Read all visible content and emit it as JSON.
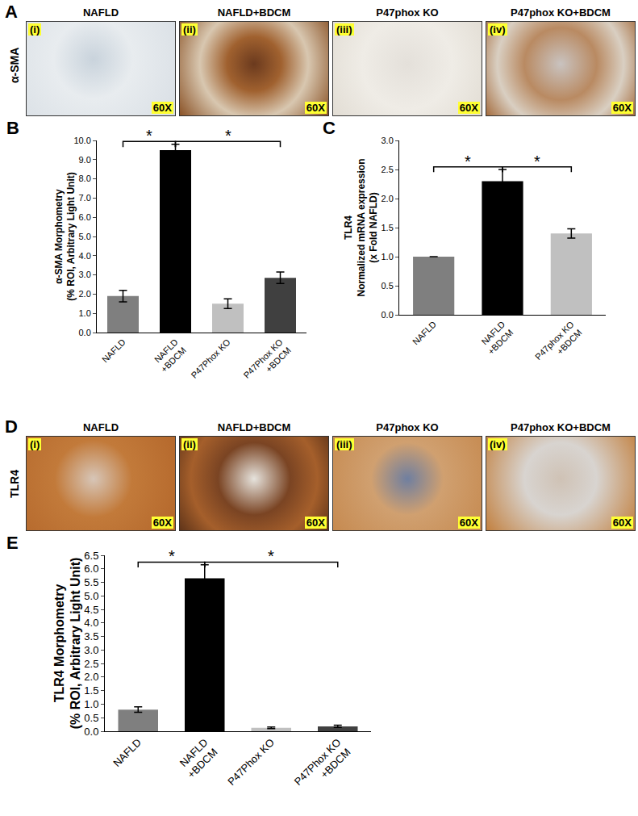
{
  "image_panels": [
    {
      "panel": "A",
      "row_label": "α-SMA",
      "images": [
        {
          "title": "NAFLD",
          "index": "(i)",
          "magnification": "60X"
        },
        {
          "title": "NAFLD+BDCM",
          "index": "(ii)",
          "magnification": "60X"
        },
        {
          "title": "P47phox  KO",
          "index": "(iii)",
          "magnification": "60X"
        },
        {
          "title": "P47phox  KO+BDCM",
          "index": "(iv)",
          "magnification": "60X"
        }
      ]
    },
    {
      "panel": "D",
      "row_label": "TLR4",
      "images": [
        {
          "title": "NAFLD",
          "index": "(i)",
          "magnification": "60X"
        },
        {
          "title": "NAFLD+BDCM",
          "index": "(ii)",
          "magnification": "60X"
        },
        {
          "title": "P47phox  KO",
          "index": "(iii)",
          "magnification": "60X"
        },
        {
          "title": "P47phox  KO+BDCM",
          "index": "(iv)",
          "magnification": "60X"
        }
      ]
    }
  ],
  "chart_data": [
    {
      "panel": "B",
      "type": "bar",
      "y_label": [
        "α-SMA Morphometry",
        "(% ROI, Arbitrary Light Unit)"
      ],
      "categories": [
        "NAFLD",
        "NAFLD\n+BDCM",
        "P47Phox KO",
        "P47Phox KO\n+BDCM"
      ],
      "values": [
        1.9,
        9.5,
        1.5,
        2.85
      ],
      "errors": [
        0.3,
        0.3,
        0.25,
        0.3
      ],
      "colors": [
        "#7f7f7f",
        "#000000",
        "#c0c0c0",
        "#404040"
      ],
      "ylim": [
        0,
        10
      ],
      "yticks": [
        {
          "value": 0,
          "label": "0.0"
        },
        {
          "value": 1,
          "label": "1.0"
        },
        {
          "value": 2,
          "label": "2.0"
        },
        {
          "value": 3,
          "label": "3.0"
        },
        {
          "value": 4,
          "label": "4.0"
        },
        {
          "value": 5,
          "label": "5.0"
        },
        {
          "value": 6,
          "label": "6.0"
        },
        {
          "value": 7,
          "label": "7.0"
        },
        {
          "value": 8,
          "label": "8.0"
        },
        {
          "value": 9,
          "label": "9.0"
        },
        {
          "value": 10,
          "label": "10.0"
        }
      ],
      "grid": false,
      "significance": [
        {
          "from": 0,
          "to": 1,
          "label": "*"
        },
        {
          "from": 1,
          "to": 3,
          "label": "*"
        }
      ]
    },
    {
      "panel": "C",
      "type": "bar",
      "y_label": [
        "TLR4",
        "Normalized mRNA expression",
        "(x Fold NAFLD)"
      ],
      "categories": [
        "NAFLD",
        "NAFLD\n+BDCM",
        "P47phox KO\n+BDCM"
      ],
      "values": [
        1.0,
        2.3,
        1.4
      ],
      "errors": [
        0,
        0.2,
        0.08
      ],
      "colors": [
        "#7f7f7f",
        "#000000",
        "#c0c0c0"
      ],
      "ylim": [
        0,
        3
      ],
      "yticks": [
        {
          "value": 0,
          "label": "0.0"
        },
        {
          "value": 0.5,
          "label": "0.5"
        },
        {
          "value": 1,
          "label": "1.0"
        },
        {
          "value": 1.5,
          "label": "1.5"
        },
        {
          "value": 2,
          "label": "2.0"
        },
        {
          "value": 2.5,
          "label": "2.5"
        },
        {
          "value": 3,
          "label": "3.0"
        }
      ],
      "grid": false,
      "significance": [
        {
          "from": 0,
          "to": 1,
          "label": "*"
        },
        {
          "from": 1,
          "to": 2,
          "label": "*"
        }
      ]
    },
    {
      "panel": "E",
      "type": "bar",
      "y_label": [
        "TLR4 Morphometry",
        "(% ROI, Arbitrary Light Unit)"
      ],
      "categories": [
        "NAFLD",
        "NAFLD\n+BDCM",
        "P47Phox KO",
        "P47Phox KO\n+BDCM"
      ],
      "values": [
        0.8,
        5.65,
        0.13,
        0.18
      ],
      "errors": [
        0.1,
        0.5,
        0.03,
        0.04
      ],
      "colors": [
        "#7f7f7f",
        "#000000",
        "#c0c0c0",
        "#404040"
      ],
      "ylim": [
        0,
        6.5
      ],
      "yticks": [
        {
          "value": 0,
          "label": "0.0"
        },
        {
          "value": 0.5,
          "label": "0.5"
        },
        {
          "value": 1,
          "label": "1.0"
        },
        {
          "value": 1.5,
          "label": "1.5"
        },
        {
          "value": 2,
          "label": "2.0"
        },
        {
          "value": 2.5,
          "label": "2.5"
        },
        {
          "value": 3,
          "label": "3.0"
        },
        {
          "value": 3.5,
          "label": "3.5"
        },
        {
          "value": 4,
          "label": "4.0"
        },
        {
          "value": 4.5,
          "label": "4.5"
        },
        {
          "value": 5,
          "label": "5.0"
        },
        {
          "value": 5.5,
          "label": "5.5"
        },
        {
          "value": 6,
          "label": "6.0"
        },
        {
          "value": 6.5,
          "label": "6.5"
        }
      ],
      "grid": false,
      "significance": [
        {
          "from": 0,
          "to": 1,
          "label": "*"
        },
        {
          "from": 1,
          "to": 3,
          "label": "*"
        }
      ]
    }
  ]
}
